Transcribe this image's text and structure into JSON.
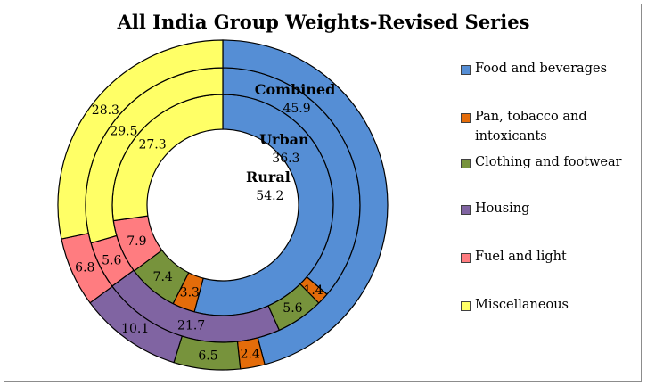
{
  "chart_data": {
    "type": "pie",
    "title": "All India Group Weights-Revised Series",
    "categories": [
      "Food and beverages",
      "Pan, tobacco and intoxicants",
      "Clothing and footwear",
      "Housing",
      "Fuel and light",
      "Miscellaneous"
    ],
    "colors": [
      "#558ed5",
      "#e46c0a",
      "#77933c",
      "#8064a2",
      "#ff7c80",
      "#ffff66"
    ],
    "series": [
      {
        "name": "Rural",
        "values": [
          54.2,
          3.3,
          7.4,
          0,
          7.9,
          27.3
        ]
      },
      {
        "name": "Urban",
        "values": [
          36.3,
          1.4,
          5.6,
          21.7,
          5.6,
          29.5
        ]
      },
      {
        "name": "Combined",
        "values": [
          45.9,
          2.4,
          6.5,
          10.1,
          6.8,
          28.3
        ]
      }
    ],
    "value_labels": {
      "Rural": [
        "54.2",
        "3.3",
        "7.4",
        "",
        "7.9",
        "27.3"
      ],
      "Urban": [
        "36.3",
        "1.4",
        "5.6",
        "21.7",
        "5.6",
        "29.5"
      ],
      "Combined": [
        "45.9",
        "2.4",
        "6.5",
        "10.1",
        "6.8",
        "28.3"
      ]
    },
    "legend": "right"
  }
}
